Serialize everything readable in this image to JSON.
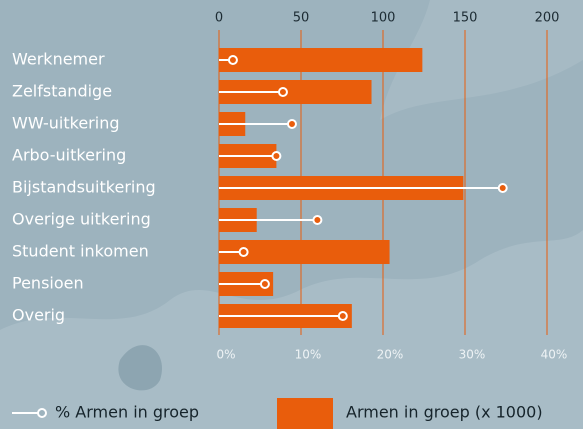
{
  "chart_data": {
    "type": "bar",
    "categories": [
      "Werknemer",
      "Zelfstandige",
      "WW-uitkering",
      "Arbo-uitkering",
      "Bijstandsuitkering",
      "Overige uitkering",
      "Student inkomen",
      "Pensioen",
      "Overig"
    ],
    "series": [
      {
        "name": "Armen in groep (x 1000)",
        "color": "#e95d0c",
        "values": [
          124,
          93,
          16,
          35,
          149,
          23,
          104,
          33,
          81
        ]
      },
      {
        "name": "% Armen in groep",
        "color": "#ffffff",
        "axis": "x2",
        "values": [
          1.7,
          7.8,
          8.9,
          7.0,
          34.6,
          12.0,
          3.0,
          5.6,
          15.1
        ]
      }
    ],
    "xlim": [
      0,
      200
    ],
    "xticks": [
      0,
      50,
      100,
      150,
      200
    ],
    "x2lim": [
      0,
      40
    ],
    "x2ticks": [
      {
        "value": 0,
        "label": "0%"
      },
      {
        "value": 10,
        "label": "10%"
      },
      {
        "value": 20,
        "label": "20%"
      },
      {
        "value": 30,
        "label": "30%"
      },
      {
        "value": 40,
        "label": "40%"
      }
    ],
    "grid": true
  }
}
